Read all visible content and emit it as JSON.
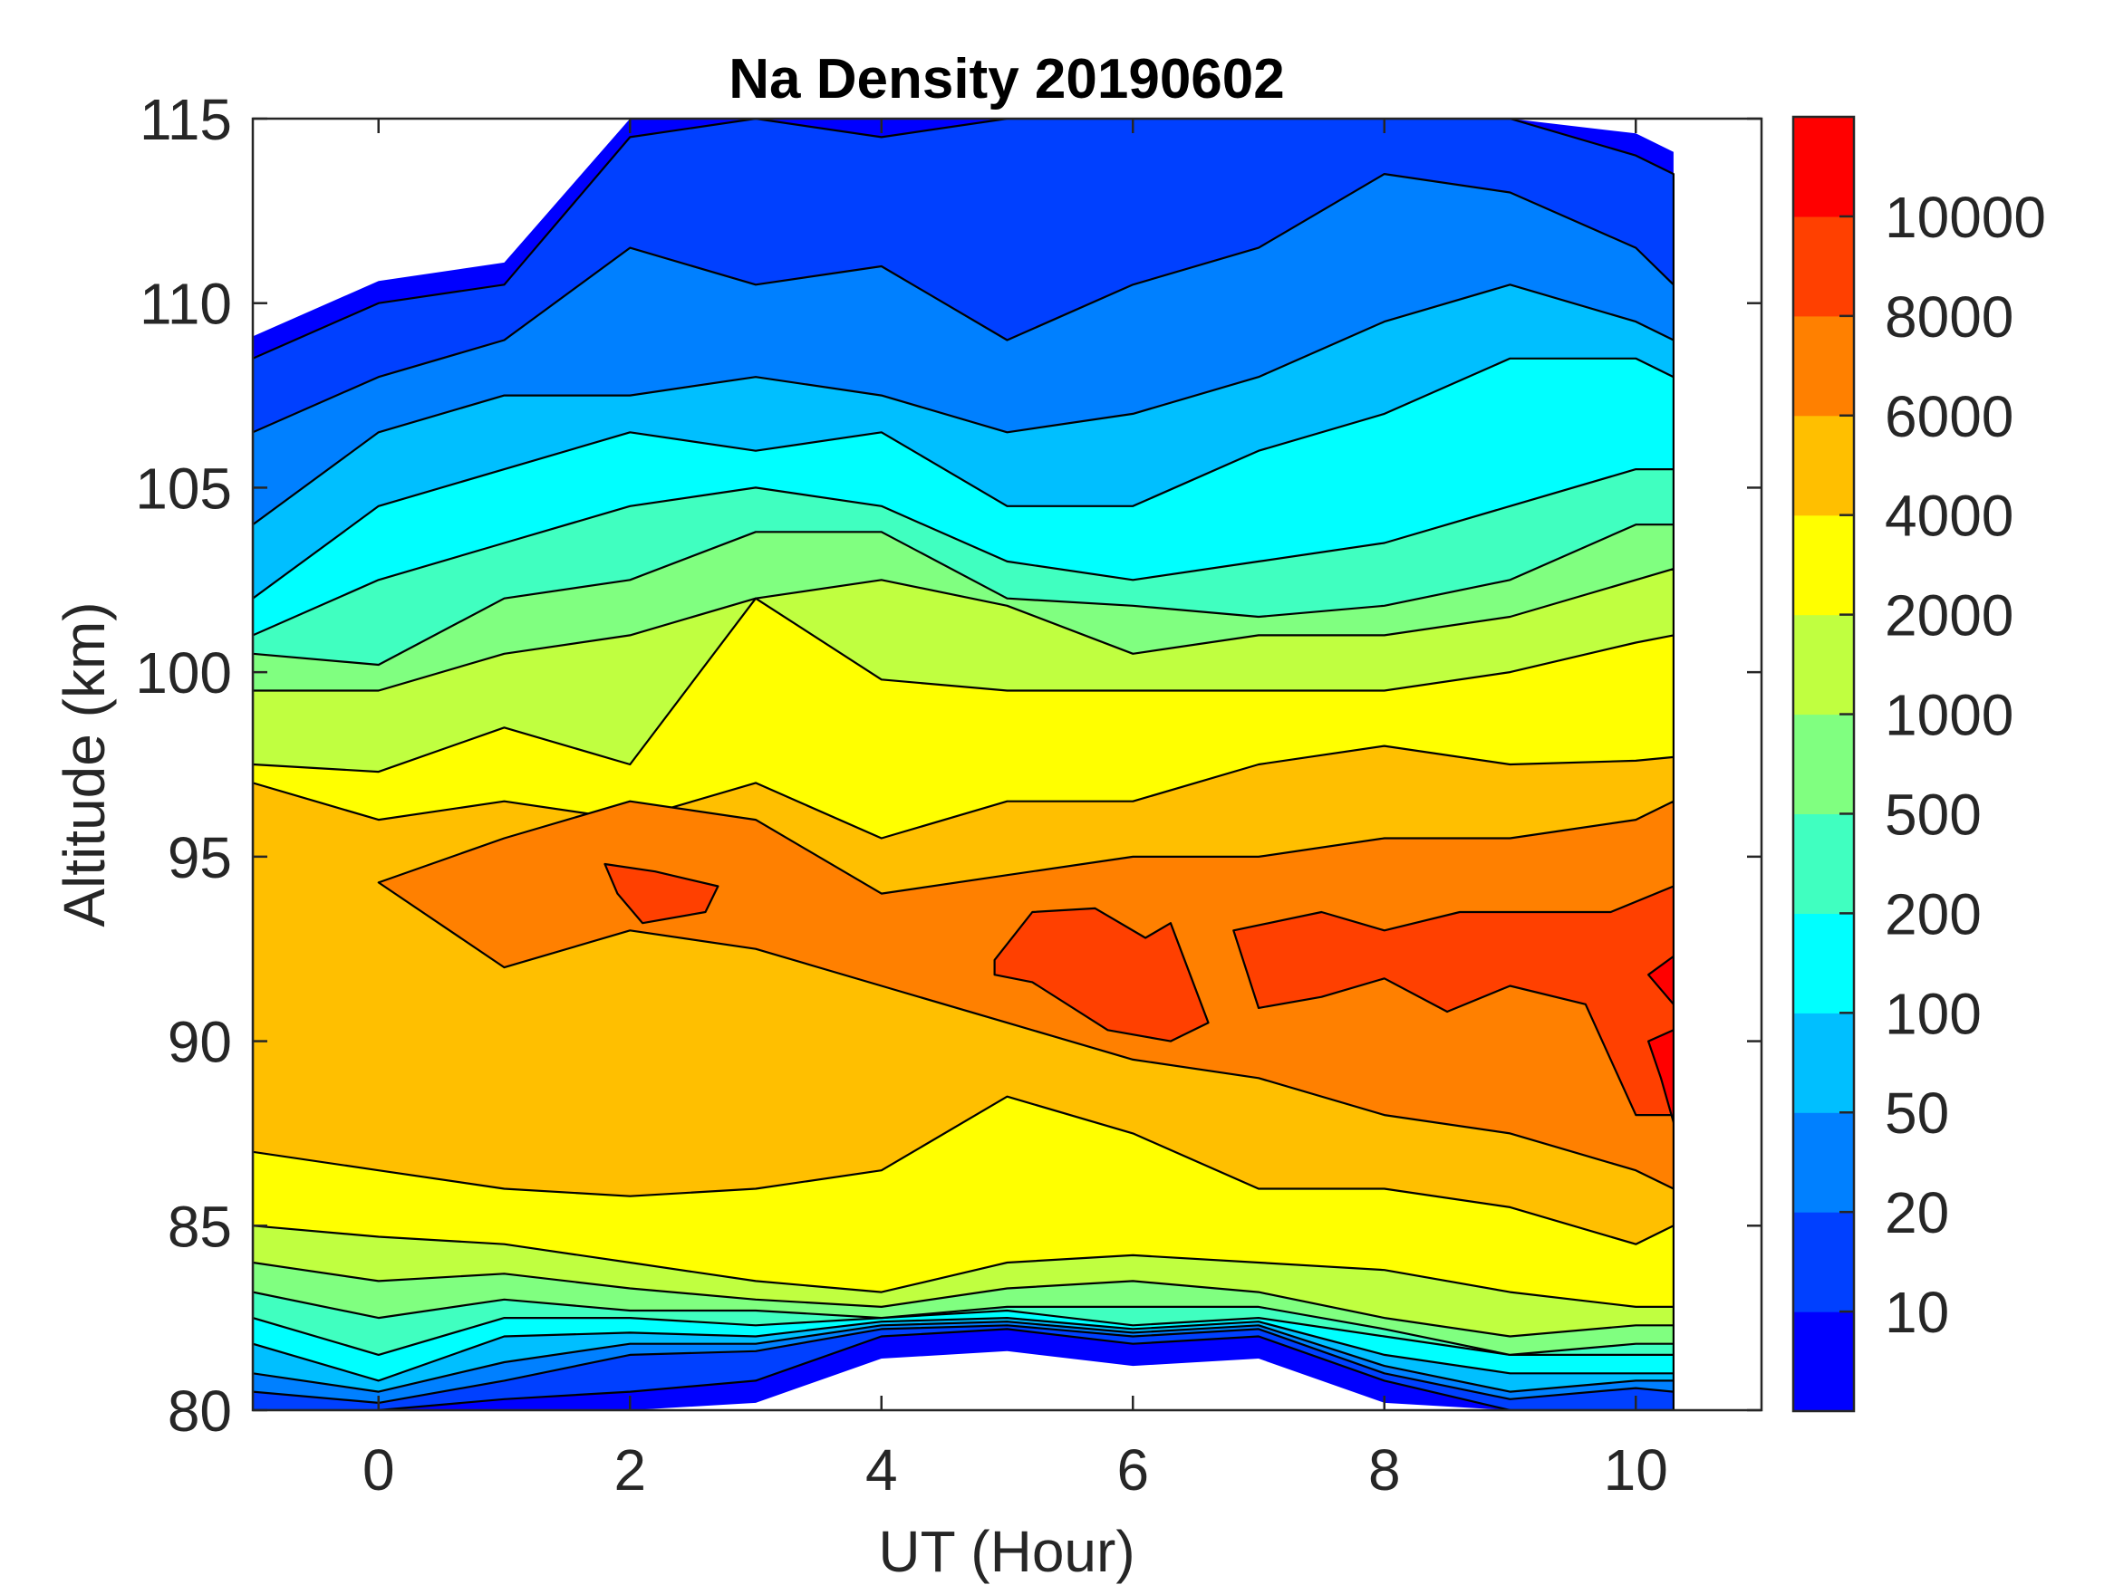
{
  "chart_data": {
    "type": "heatmap",
    "subtype": "filled-contour",
    "title": "Na Density 20190602",
    "xlabel": "UT (Hour)",
    "ylabel": "Altitude (km)",
    "xlim": [
      -1,
      11
    ],
    "ylim": [
      80,
      115
    ],
    "x_ticks": [
      0,
      2,
      4,
      6,
      8,
      10
    ],
    "x_tick_labels": [
      "0",
      "2",
      "4",
      "6",
      "8",
      "10"
    ],
    "y_ticks": [
      80,
      85,
      90,
      95,
      100,
      105,
      110,
      115
    ],
    "y_tick_labels": [
      "80",
      "85",
      "90",
      "95",
      "100",
      "105",
      "110",
      "115"
    ],
    "data_x_range": [
      -1,
      10.3
    ],
    "grid": false,
    "colorbar": {
      "position": "right",
      "levels": [
        10,
        20,
        50,
        100,
        200,
        500,
        1000,
        2000,
        4000,
        6000,
        8000,
        10000
      ],
      "tick_labels": [
        "10",
        "20",
        "50",
        "100",
        "200",
        "500",
        "1000",
        "2000",
        "4000",
        "6000",
        "8000",
        "10000"
      ],
      "colors": [
        "#0000FF",
        "#0040FF",
        "#0080FF",
        "#00BFFF",
        "#00FFFF",
        "#40FFC0",
        "#80FF80",
        "#C0FF40",
        "#FFFF00",
        "#FFBF00",
        "#FF8000",
        "#FF4000",
        "#FF0000"
      ]
    },
    "sample_ut": [
      -1,
      0,
      1,
      2,
      3,
      4,
      5,
      6,
      7,
      8,
      9,
      10,
      10.3
    ],
    "contours": [
      {
        "level": 10,
        "top": [
          108.5,
          110,
          110.5,
          114.5,
          115,
          114.5,
          115,
          115,
          115,
          115,
          115,
          114,
          113.5
        ],
        "bottom": [
          80,
          80,
          80.3,
          80.5,
          80.8,
          82,
          82.2,
          81.8,
          82,
          80.8,
          80,
          80,
          80
        ]
      },
      {
        "level": 20,
        "top": [
          106.5,
          108,
          109,
          111.5,
          110.5,
          111,
          109,
          110.5,
          111.5,
          113.5,
          113,
          111.5,
          110.5
        ],
        "bottom": [
          80.5,
          80.2,
          80.8,
          81.5,
          81.6,
          82.2,
          82.3,
          82,
          82.2,
          81,
          80.3,
          80.6,
          80.5
        ]
      },
      {
        "level": 50,
        "top": [
          104,
          106.5,
          107.5,
          107.5,
          108,
          107.5,
          106.5,
          107,
          108,
          109.5,
          110.5,
          109.5,
          109
        ],
        "bottom": [
          81,
          80.5,
          81.3,
          81.8,
          81.8,
          82.3,
          82.4,
          82.1,
          82.3,
          81.2,
          80.5,
          80.8,
          80.8
        ]
      },
      {
        "level": 100,
        "top": [
          102,
          104.5,
          105.5,
          106.5,
          106,
          106.5,
          104.5,
          104.5,
          106,
          107,
          108.5,
          108.5,
          108
        ],
        "bottom": [
          81.8,
          80.8,
          82,
          82.1,
          82,
          82.4,
          82.5,
          82.2,
          82.4,
          81.5,
          81,
          81,
          81
        ]
      },
      {
        "level": 200,
        "top": [
          101,
          102.5,
          103.5,
          104.5,
          105,
          104.5,
          103,
          102.5,
          103,
          103.5,
          104.5,
          105.5,
          105.5
        ],
        "bottom": [
          82.5,
          81.5,
          82.5,
          82.5,
          82.3,
          82.5,
          82.7,
          82.3,
          82.5,
          82,
          81.5,
          81.5,
          81.5
        ]
      },
      {
        "level": 500,
        "top": [
          100.5,
          100.2,
          102,
          102.5,
          103.8,
          103.8,
          102,
          101.8,
          101.5,
          101.8,
          102.5,
          104,
          104
        ],
        "bottom": [
          83.2,
          82.5,
          83,
          82.7,
          82.7,
          82.5,
          82.8,
          82.8,
          82.8,
          82.2,
          81.5,
          81.8,
          81.8
        ]
      },
      {
        "level": 1000,
        "top": [
          99.5,
          99.5,
          100.5,
          101,
          102,
          102.5,
          101.8,
          100.5,
          101,
          101,
          101.5,
          102.5,
          102.8
        ],
        "bottom": [
          84,
          83.5,
          83.7,
          83.3,
          83,
          82.8,
          83.3,
          83.5,
          83.2,
          82.5,
          82,
          82.3,
          82.3
        ]
      },
      {
        "level": 2000,
        "top": [
          97.5,
          97.3,
          98.5,
          97.5,
          102,
          99.8,
          99.5,
          99.5,
          99.5,
          99.5,
          100,
          100.8,
          101
        ],
        "bottom": [
          85,
          84.7,
          84.5,
          84,
          83.5,
          83.2,
          84,
          84.2,
          84,
          83.8,
          83.2,
          82.8,
          82.8
        ]
      },
      {
        "level": 4000,
        "top": [
          97,
          96,
          96.5,
          96,
          97,
          95.5,
          96.5,
          96.5,
          97.5,
          98,
          97.5,
          97.6,
          97.7
        ],
        "bottom": [
          87,
          86.5,
          86,
          85.8,
          86,
          86.5,
          88.5,
          87.5,
          86,
          86,
          85.5,
          84.5,
          85
        ]
      },
      {
        "level": 6000,
        "ut": [
          0,
          1,
          2,
          3,
          4,
          5,
          6,
          7,
          8,
          9,
          10,
          10.3
        ],
        "top": [
          94.3,
          95.5,
          96.5,
          96,
          94,
          94.5,
          95,
          95,
          95.5,
          95.5,
          96,
          96.5
        ],
        "bottom": [
          94.3,
          92,
          93,
          92.5,
          91.5,
          90.5,
          89.5,
          89,
          88,
          87.5,
          86.5,
          86
        ]
      }
    ],
    "patches": [
      {
        "level": 8000,
        "ut": [
          1.8,
          2.2,
          2.7,
          2.6,
          2.1,
          1.9
        ],
        "alt": [
          94.8,
          94.6,
          94.2,
          93.5,
          93.2,
          94.0
        ]
      },
      {
        "level": 8000,
        "ut": [
          4.9,
          5.2,
          5.7,
          6.1,
          6.3,
          6.6,
          6.3,
          5.8,
          5.2,
          4.9
        ],
        "alt": [
          92.2,
          93.5,
          93.6,
          92.8,
          93.2,
          90.5,
          90.0,
          90.3,
          91.6,
          91.8
        ]
      },
      {
        "level": 8000,
        "ut": [
          6.8,
          7.5,
          8.0,
          8.6,
          9.2,
          9.8,
          10.3,
          10.3,
          10.0,
          9.6,
          9.0,
          8.5,
          8.0,
          7.5,
          7.0
        ],
        "alt": [
          93.0,
          93.5,
          93.0,
          93.5,
          93.5,
          93.5,
          94.2,
          88.0,
          88.0,
          91.0,
          91.5,
          90.8,
          91.7,
          91.2,
          90.9
        ]
      },
      {
        "level": 10000,
        "ut": [
          10.1,
          10.3,
          10.3
        ],
        "alt": [
          91.8,
          92.3,
          91.0
        ]
      },
      {
        "level": 10000,
        "ut": [
          10.1,
          10.3,
          10.3,
          10.2
        ],
        "alt": [
          90.0,
          90.3,
          87.8,
          89.0
        ]
      }
    ]
  }
}
